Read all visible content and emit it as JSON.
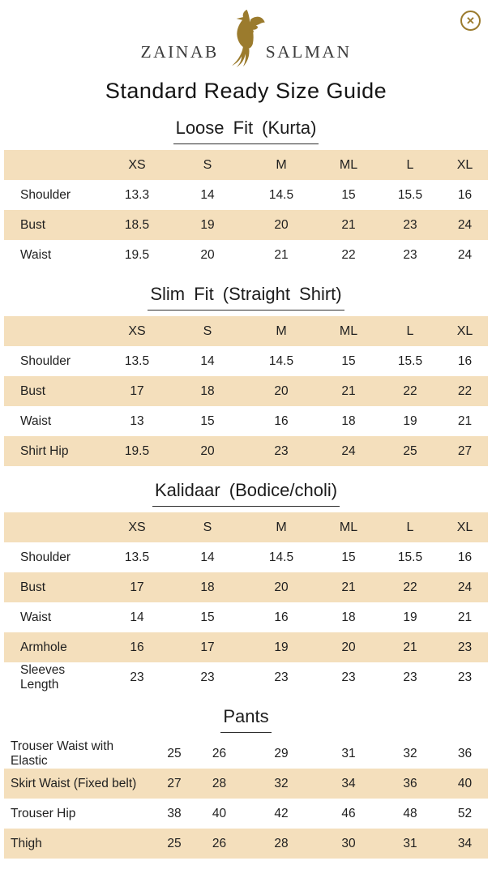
{
  "brand": {
    "left": "ZAINAB",
    "right": "SALMAN"
  },
  "close": {
    "glyph": "✕"
  },
  "page_title": "Standard Ready Size Guide",
  "size_columns": [
    "XS",
    "S",
    "M",
    "ML",
    "L",
    "XL"
  ],
  "sections": [
    {
      "title": "Loose Fit (Kurta)",
      "has_header": true,
      "rows": [
        {
          "label": "Shoulder",
          "values": [
            "13.3",
            "14",
            "14.5",
            "15",
            "15.5",
            "16"
          ]
        },
        {
          "label": "Bust",
          "values": [
            "18.5",
            "19",
            "20",
            "21",
            "23",
            "24"
          ]
        },
        {
          "label": "Waist",
          "values": [
            "19.5",
            "20",
            "21",
            "22",
            "23",
            "24"
          ]
        }
      ]
    },
    {
      "title": "Slim Fit (Straight Shirt)",
      "has_header": true,
      "rows": [
        {
          "label": "Shoulder",
          "values": [
            "13.5",
            "14",
            "14.5",
            "15",
            "15.5",
            "16"
          ]
        },
        {
          "label": "Bust",
          "values": [
            "17",
            "18",
            "20",
            "21",
            "22",
            "22"
          ]
        },
        {
          "label": "Waist",
          "values": [
            "13",
            "15",
            "16",
            "18",
            "19",
            "21"
          ]
        },
        {
          "label": "Shirt Hip",
          "values": [
            "19.5",
            "20",
            "23",
            "24",
            "25",
            "27"
          ]
        }
      ]
    },
    {
      "title": "Kalidaar (Bodice/choli)",
      "has_header": true,
      "rows": [
        {
          "label": "Shoulder",
          "values": [
            "13.5",
            "14",
            "14.5",
            "15",
            "15.5",
            "16"
          ]
        },
        {
          "label": "Bust",
          "values": [
            "17",
            "18",
            "20",
            "21",
            "22",
            "24"
          ]
        },
        {
          "label": "Waist",
          "values": [
            "14",
            "15",
            "16",
            "18",
            "19",
            "21"
          ]
        },
        {
          "label": "Armhole",
          "values": [
            "16",
            "17",
            "19",
            "20",
            "21",
            "23"
          ]
        },
        {
          "label": "Sleeves Length",
          "values": [
            "23",
            "23",
            "23",
            "23",
            "23",
            "23"
          ]
        }
      ]
    },
    {
      "title": "Pants",
      "has_header": false,
      "rows": [
        {
          "label": "Trouser Waist with Elastic",
          "values": [
            "25",
            "26",
            "29",
            "31",
            "32",
            "36"
          ]
        },
        {
          "label": "Skirt Waist (Fixed belt)",
          "values": [
            "27",
            "28",
            "32",
            "34",
            "36",
            "40"
          ]
        },
        {
          "label": "Trouser Hip",
          "values": [
            "38",
            "40",
            "42",
            "46",
            "48",
            "52"
          ]
        },
        {
          "label": "Thigh",
          "values": [
            "25",
            "26",
            "28",
            "30",
            "31",
            "34"
          ]
        }
      ]
    }
  ],
  "colors": {
    "stripe": "#f4dfbc",
    "gold": "#9b7b2d",
    "text": "#1f1f1f"
  }
}
